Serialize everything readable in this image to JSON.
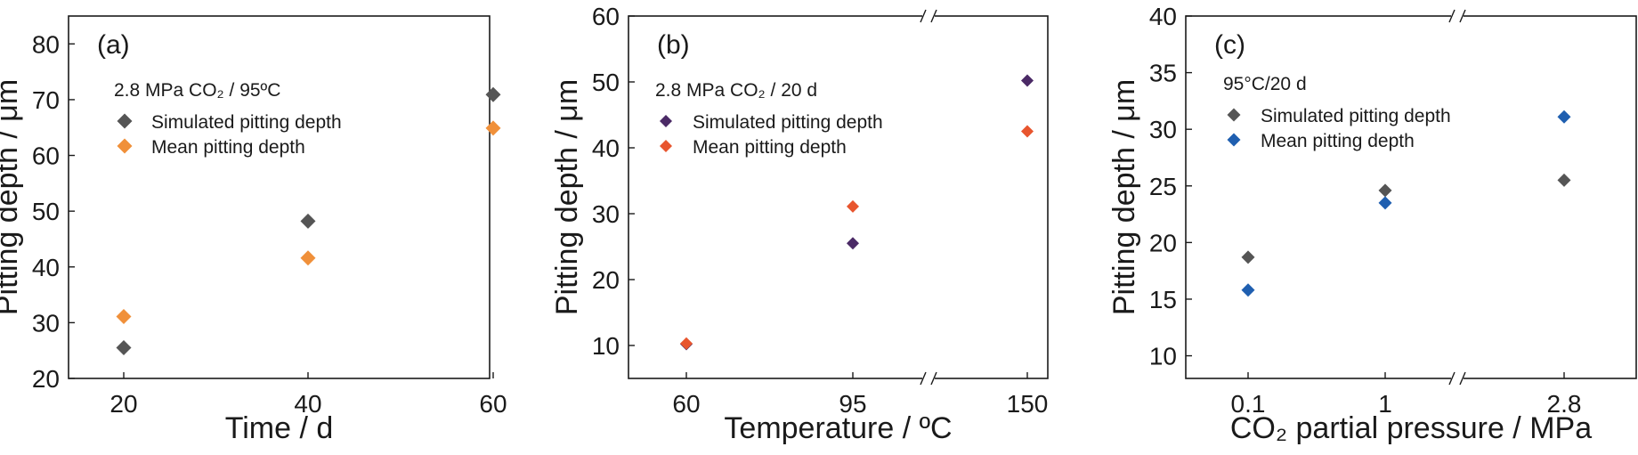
{
  "chart_data": [
    {
      "type": "scatter",
      "panel_label": "(a)",
      "condition": "2.8 MPa CO₂ / 95ºC",
      "xlabel": "Time / d",
      "ylabel": "Pitting depth / μm",
      "x_ticks": [
        "20",
        "40",
        "60"
      ],
      "y_ticks": [
        "20",
        "30",
        "40",
        "50",
        "60",
        "70",
        "80"
      ],
      "ylim": [
        20,
        85
      ],
      "axis_break": false,
      "series": [
        {
          "name": "Simulated pitting depth",
          "color": "#555555",
          "x": [
            20,
            40,
            60
          ],
          "y": [
            25.5,
            48.2,
            70.9
          ]
        },
        {
          "name": "Mean pitting depth",
          "color": "#f0903a",
          "x": [
            20,
            40,
            60
          ],
          "y": [
            31.1,
            41.6,
            64.9
          ]
        }
      ]
    },
    {
      "type": "scatter",
      "panel_label": "(b)",
      "condition": "2.8 MPa CO₂ / 20 d",
      "xlabel": "Temperature / ºC",
      "ylabel": "Pitting depth / μm",
      "x_ticks": [
        "60",
        "95",
        "150"
      ],
      "y_ticks": [
        "10",
        "20",
        "30",
        "40",
        "50",
        "60"
      ],
      "ylim": [
        5,
        60
      ],
      "axis_break": true,
      "series": [
        {
          "name": "Simulated pitting depth",
          "color": "#4b2a66",
          "x": [
            60,
            95,
            150
          ],
          "y": [
            10.2,
            25.5,
            50.2
          ]
        },
        {
          "name": "Mean pitting depth",
          "color": "#e8552e",
          "x": [
            60,
            95,
            150
          ],
          "y": [
            10.3,
            31.1,
            42.5
          ]
        }
      ]
    },
    {
      "type": "scatter",
      "panel_label": "(c)",
      "condition": "95°C/20 d",
      "xlabel": "CO₂ partial pressure / MPa",
      "ylabel": "Pitting depth / μm",
      "x_ticks": [
        "0.1",
        "1",
        "2.8"
      ],
      "y_ticks": [
        "10",
        "15",
        "20",
        "25",
        "30",
        "35",
        "40"
      ],
      "ylim": [
        8,
        40
      ],
      "axis_break": true,
      "series": [
        {
          "name": "Simulated pitting depth",
          "color": "#555555",
          "x": [
            0.1,
            1,
            2.8
          ],
          "y": [
            18.7,
            24.6,
            25.5
          ]
        },
        {
          "name": "Mean pitting depth",
          "color": "#1f5fb0",
          "x": [
            0.1,
            1,
            2.8
          ],
          "y": [
            15.8,
            23.5,
            31.1
          ]
        }
      ]
    }
  ]
}
